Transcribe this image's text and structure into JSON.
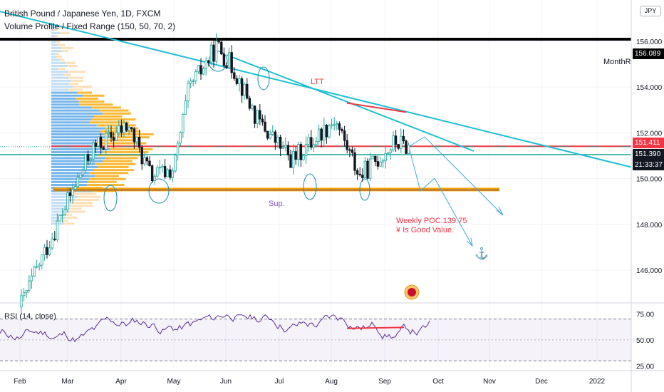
{
  "header": {
    "symbol_line": "British Pound / Japanese Yen, 1D, FXCM",
    "indicator_line": "Volume Profile / Fixed Range (150, 50, 70, 2)",
    "currency_badge": "JPY"
  },
  "price_axis": {
    "ticks": [
      "156.000",
      "154.000",
      "152.000",
      "150.000",
      "148.000",
      "146.000"
    ],
    "tick_values": [
      156,
      154,
      152,
      150,
      148,
      146
    ],
    "ylim": [
      144.6,
      157.8
    ]
  },
  "tags": {
    "resistance": {
      "label": "156.089",
      "value": 156.089,
      "bg": "#000000",
      "fg": "#ffffff"
    },
    "red_level": {
      "label": "151.411",
      "value": 151.411,
      "bg": "#f23645",
      "fg": "#ffffff"
    },
    "last_price": {
      "label": "151.390",
      "value": 151.39,
      "bg": "#131722",
      "fg": "#ffffff"
    },
    "countdown": {
      "label": "21:33:37",
      "bg": "#131722",
      "fg": "#ffffff"
    }
  },
  "annotations": {
    "month_r": "MonthR",
    "ltt": "LTT",
    "sup": "Sup.",
    "weekly_poc": "Weekly POC.139.75",
    "good_value": "¥ Is Good Value.",
    "anchor_icon": "anchor-icon"
  },
  "rsi": {
    "title": "RSI (14, close)",
    "ticks": [
      "75.00",
      "50.00",
      "25.00"
    ],
    "tick_values": [
      75,
      50,
      25
    ],
    "band_upper": 70,
    "band_lower": 30,
    "ylim": [
      22,
      82
    ]
  },
  "time_axis": {
    "labels": [
      "Feb",
      "Mar",
      "Apr",
      "May",
      "Jun",
      "Jul",
      "Aug",
      "Sep",
      "Oct",
      "Nov",
      "Dec",
      "2022"
    ]
  },
  "colors": {
    "bull_candle": "#26a69a",
    "bear_candle": "#131722",
    "trendline": "#1fbfd3",
    "resistance_line": "#000000",
    "red_line": "#f23645",
    "support_band": "#f7a600",
    "rsi_line": "#5a2f8f",
    "rsi_band": "#7e57c2"
  },
  "chart_data": {
    "type": "candlestick",
    "title": "British Pound / Japanese Yen, 1D, FXCM",
    "x_range": [
      "Feb",
      "2022"
    ],
    "y_range": [
      144.6,
      157.8
    ],
    "levels": [
      {
        "value": 156.089,
        "color": "#000000"
      },
      {
        "value": 151.411,
        "color": "#f23645"
      },
      {
        "value": 151.39,
        "color": "#26a69a"
      },
      {
        "value": 149.5,
        "color": "#f7a600"
      }
    ],
    "close_path": [
      {
        "x": "Feb",
        "y": 144.4
      },
      {
        "x": "Mar",
        "y": 148.8
      },
      {
        "x": "Mar",
        "y": 151.3
      },
      {
        "x": "Apr",
        "y": 152.3
      },
      {
        "x": "Apr",
        "y": 150.1
      },
      {
        "x": "May",
        "y": 150.4
      },
      {
        "x": "May",
        "y": 153.9
      },
      {
        "x": "Jun",
        "y": 155.8
      },
      {
        "x": "Jun",
        "y": 154.7
      },
      {
        "x": "Jul",
        "y": 152.6
      },
      {
        "x": "Jul",
        "y": 150.8
      },
      {
        "x": "Aug",
        "y": 152.6
      },
      {
        "x": "Aug",
        "y": 150.1
      },
      {
        "x": "Sep",
        "y": 151.6
      },
      {
        "x": "Sep",
        "y": 151.39
      }
    ]
  }
}
